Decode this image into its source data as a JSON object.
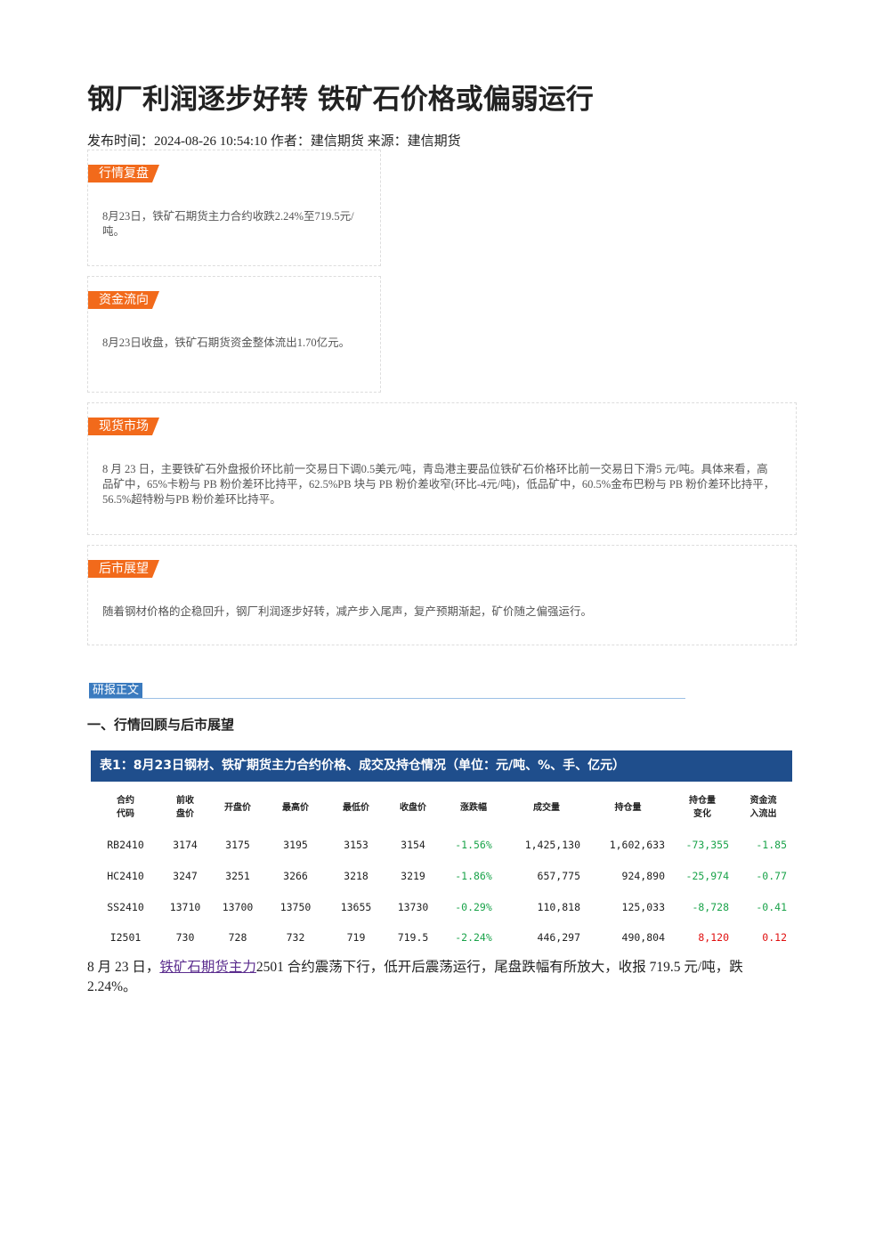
{
  "header": {
    "title": "钢厂利润逐步好转 铁矿石价格或偏弱运行",
    "meta": "发布时间：2024-08-26 10:54:10 作者：建信期货 来源：建信期货"
  },
  "sections": [
    {
      "tag": "行情复盘",
      "text": "8月23日，铁矿石期货主力合约收跌2.24%至719.5元/吨。"
    },
    {
      "tag": "资金流向",
      "text": "8月23日收盘，铁矿石期货资金整体流出1.70亿元。"
    },
    {
      "tag": "现货市场",
      "text": "8 月 23 日，主要铁矿石外盘报价环比前一交易日下调0.5美元/吨，青岛港主要品位铁矿石价格环比前一交易日下滑5 元/吨。具体来看，高品矿中，65%卡粉与 PB 粉价差环比持平，62.5%PB 块与 PB 粉价差收窄(环比-4元/吨)，低品矿中，60.5%金布巴粉与 PB 粉价差环比持平，56.5%超特粉与PB 粉价差环比持平。"
    },
    {
      "tag": "后市展望",
      "text": "随着钢材价格的企稳回升，钢厂利润逐步好转，减产步入尾声，复产预期渐起，矿价随之偏强运行。"
    }
  ],
  "report": {
    "tag": "研报正文",
    "heading": "一、行情回顾与后市展望"
  },
  "table": {
    "caption": "表1：8月23日钢材、铁矿期货主力合约价格、成交及持仓情况（单位：元/吨、%、手、亿元）",
    "headers": [
      "合约\n代码",
      "前收\n盘价",
      "开盘价",
      "最高价",
      "最低价",
      "收盘价",
      "涨跌幅",
      "成交量",
      "持仓量",
      "持仓量\n变化",
      "资金流\n入流出"
    ],
    "rows": [
      [
        "RB2410",
        "3174",
        "3175",
        "3195",
        "3153",
        "3154",
        "-1.56%",
        "1,425,130",
        "1,602,633",
        "-73,355",
        "-1.85"
      ],
      [
        "HC2410",
        "3247",
        "3251",
        "3266",
        "3218",
        "3219",
        "-1.86%",
        "657,775",
        "924,890",
        "-25,974",
        "-0.77"
      ],
      [
        "SS2410",
        "13710",
        "13700",
        "13750",
        "13655",
        "13730",
        "-0.29%",
        "110,818",
        "125,033",
        "-8,728",
        "-0.41"
      ],
      [
        "I2501",
        "730",
        "728",
        "732",
        "719",
        "719.5",
        "-2.24%",
        "446,297",
        "490,804",
        "8,120",
        "0.12"
      ]
    ]
  },
  "paragraph": {
    "before": "8 月 23 日，",
    "link": "铁矿石期货主力",
    "after": "2501 合约震荡下行，低开后震荡运行，尾盘跌幅有所放大，收报 719.5 元/吨，跌 2.24%。"
  }
}
